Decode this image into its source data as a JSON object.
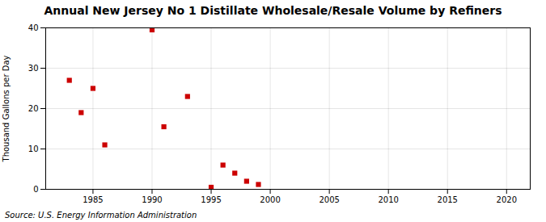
{
  "chart_data": {
    "type": "scatter",
    "title": "Annual New Jersey No 1 Distillate Wholesale/Resale Volume by Refiners",
    "ylabel": "Thousand Gallons per Day",
    "source": "Source: U.S. Energy Information Administration",
    "x": [
      1983,
      1984,
      1985,
      1986,
      1990,
      1991,
      1993,
      1995,
      1996,
      1997,
      1998,
      1999
    ],
    "values": [
      27.0,
      19.0,
      25.0,
      11.0,
      39.5,
      15.5,
      23.0,
      0.5,
      6.0,
      4.0,
      2.0,
      1.2
    ],
    "color": "#cc0000",
    "marker": "square",
    "xlim": [
      1981,
      2022
    ],
    "ylim": [
      0,
      40
    ],
    "xticks": [
      1985,
      1990,
      1995,
      2000,
      2005,
      2010,
      2015,
      2020
    ],
    "yticks": [
      0,
      10,
      20,
      30,
      40
    ],
    "grid": true
  }
}
